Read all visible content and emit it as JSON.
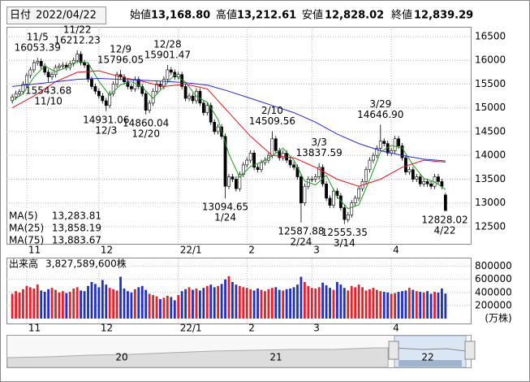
{
  "header": {
    "date_label": "日付",
    "date": "2022/04/22",
    "fields": [
      {
        "name": "始値",
        "value": "13,168.80",
        "color": "#000000"
      },
      {
        "name": "高値",
        "value": "13,212.61",
        "color": "#e0141e"
      },
      {
        "name": "安値",
        "value": "12,828.02",
        "color": "#0a8a1e"
      },
      {
        "name": "終値",
        "value": "12,839.29",
        "color": "#000000"
      }
    ]
  },
  "chart_data": [
    {
      "type": "candlestick",
      "xlim": [
        -1.6,
        127
      ],
      "ylim": [
        12140,
        16705
      ],
      "yticks": [
        12500,
        13000,
        13500,
        14000,
        14500,
        15000,
        15500,
        16000,
        16500
      ],
      "xticks": [
        {
          "value": 4,
          "label": "11"
        },
        {
          "value": 24,
          "label": "12"
        },
        {
          "value": 46,
          "label": "22/1"
        },
        {
          "value": 65,
          "label": "2"
        },
        {
          "value": 83,
          "label": "3"
        },
        {
          "value": 105,
          "label": "4"
        }
      ],
      "grid": true,
      "up_color": "#ffffff",
      "down_color": "#000000",
      "open": [
        15150,
        15230,
        15300,
        15340,
        15500,
        15680,
        15800,
        15950,
        15980,
        15880,
        15750,
        15650,
        15700,
        15850,
        15880,
        15900,
        15850,
        15930,
        16000,
        16130,
        15950,
        15900,
        15600,
        15450,
        15350,
        15250,
        15150,
        15050,
        15300,
        15500,
        15700,
        15650,
        15550,
        15450,
        15400,
        15600,
        15450,
        15300,
        14950,
        15100,
        15350,
        15500,
        15450,
        15600,
        15800,
        15750,
        15650,
        15700,
        15450,
        15200,
        15250,
        15150,
        15350,
        15100,
        14900,
        15050,
        14700,
        14500,
        14600,
        14400,
        13350,
        13550,
        13500,
        13300,
        13600,
        13800,
        13900,
        14050,
        13750,
        13700,
        13850,
        13900,
        14000,
        14350,
        14100,
        13950,
        14050,
        13900,
        13800,
        13750,
        13550,
        13000,
        13350,
        13500,
        13500,
        13550,
        13750,
        13400,
        13100,
        12950,
        13250,
        13150,
        12900,
        12650,
        12750,
        13000,
        13100,
        13300,
        13450,
        13700,
        13900,
        14000,
        14150,
        14300,
        14250,
        14050,
        14100,
        14350,
        14200,
        13950,
        13650,
        13700,
        13500,
        13550,
        13400,
        13450,
        13400,
        13350,
        13550,
        13450,
        13168.8
      ],
      "high": [
        15290,
        15360,
        15400,
        15560,
        15740,
        15860,
        16010,
        16053.39,
        16040,
        15940,
        15810,
        15760,
        15910,
        15940,
        15960,
        15960,
        15990,
        16060,
        16212.23,
        16190,
        16010,
        15960,
        15660,
        15510,
        15410,
        15310,
        15210,
        15360,
        15560,
        15760,
        15796.05,
        15710,
        15610,
        15510,
        15660,
        15660,
        15510,
        15360,
        15160,
        15410,
        15560,
        15560,
        15660,
        15901.47,
        15860,
        15810,
        15760,
        15760,
        15510,
        15310,
        15310,
        15410,
        15410,
        15160,
        15110,
        15110,
        14760,
        14660,
        14660,
        14460,
        13610,
        13610,
        13560,
        13660,
        13860,
        13960,
        14110,
        14110,
        13810,
        13910,
        13960,
        14060,
        14509.56,
        14410,
        14160,
        14110,
        14110,
        13960,
        13860,
        13810,
        13610,
        13410,
        13560,
        13560,
        13610,
        13837.59,
        13810,
        13460,
        13160,
        13310,
        13310,
        13210,
        12960,
        12810,
        13060,
        13160,
        13360,
        13510,
        13760,
        13960,
        14060,
        14210,
        14646.9,
        14360,
        14310,
        14160,
        14410,
        14410,
        14260,
        14010,
        13760,
        13760,
        13610,
        13610,
        13510,
        13510,
        13460,
        13610,
        13610,
        13510,
        13212.61
      ],
      "low": [
        15090,
        15170,
        15240,
        15280,
        15440,
        15620,
        15740,
        15890,
        15820,
        15690,
        15543.68,
        15590,
        15640,
        15790,
        15820,
        15790,
        15790,
        15870,
        15940,
        15890,
        15840,
        15540,
        15390,
        15290,
        15190,
        15090,
        14931.06,
        14990,
        15240,
        15440,
        15590,
        15490,
        15390,
        15340,
        15340,
        15390,
        15240,
        14860.04,
        14890,
        15040,
        15290,
        15390,
        15390,
        15540,
        15690,
        15590,
        15590,
        15390,
        15140,
        15140,
        15090,
        15090,
        15040,
        14840,
        14840,
        14640,
        14440,
        14440,
        14340,
        13094.65,
        13290,
        13440,
        13240,
        13240,
        13540,
        13740,
        13840,
        13690,
        13640,
        13640,
        13790,
        13840,
        13940,
        14040,
        13890,
        13890,
        13840,
        13740,
        13690,
        13490,
        12587.88,
        12940,
        13290,
        13440,
        13440,
        13490,
        13340,
        13040,
        12890,
        12890,
        13090,
        12840,
        12555.35,
        12590,
        12690,
        12940,
        13040,
        13240,
        13390,
        13640,
        13840,
        13940,
        14090,
        14190,
        13990,
        13990,
        14040,
        14140,
        13890,
        13590,
        13590,
        13440,
        13440,
        13340,
        13340,
        13340,
        13290,
        13290,
        13390,
        13290,
        12828.02
      ],
      "close": [
        15230,
        15300,
        15340,
        15500,
        15680,
        15800,
        15950,
        15980,
        15880,
        15750,
        15650,
        15700,
        15850,
        15880,
        15900,
        15850,
        15930,
        16000,
        16130,
        15950,
        15900,
        15600,
        15450,
        15350,
        15250,
        15150,
        15050,
        15300,
        15500,
        15700,
        15650,
        15550,
        15450,
        15400,
        15600,
        15450,
        15300,
        14950,
        15100,
        15350,
        15500,
        15450,
        15600,
        15800,
        15750,
        15650,
        15700,
        15450,
        15200,
        15250,
        15150,
        15350,
        15100,
        14900,
        15050,
        14700,
        14500,
        14600,
        14400,
        13350,
        13550,
        13500,
        13300,
        13600,
        13800,
        13900,
        14050,
        13750,
        13700,
        13850,
        13900,
        14000,
        14350,
        14100,
        13950,
        14050,
        13900,
        13800,
        13750,
        13550,
        13000,
        13350,
        13500,
        13500,
        13550,
        13750,
        13400,
        13100,
        12950,
        13250,
        13150,
        12900,
        12650,
        12750,
        13000,
        13100,
        13300,
        13450,
        13700,
        13900,
        14000,
        14150,
        14300,
        14250,
        14050,
        14100,
        14350,
        14200,
        13950,
        13650,
        13700,
        13500,
        13550,
        13400,
        13450,
        13400,
        13350,
        13550,
        13450,
        13350,
        12839.29
      ],
      "annotations": [
        {
          "date": "11/5",
          "value": 16053.39
        },
        {
          "date": "11/22",
          "value": 16212.23
        },
        {
          "date": "11/10",
          "value": 15543.68
        },
        {
          "date": "12/9",
          "value": 15796.05
        },
        {
          "date": "12/3",
          "value": 14931.06
        },
        {
          "date": "12/20",
          "value": 14860.04
        },
        {
          "date": "12/28",
          "value": 15901.47
        },
        {
          "date": "1/24",
          "value": 13094.65
        },
        {
          "date": "2/10",
          "value": 14509.56
        },
        {
          "date": "2/24",
          "value": 12587.88
        },
        {
          "date": "3/3",
          "value": 13837.59
        },
        {
          "date": "3/14",
          "value": 12555.35
        },
        {
          "date": "3/29",
          "value": {
            "value": 14646.9,
            "label": "14646.90"
          }
        },
        {
          "date": "4/22",
          "value": 12828.02
        }
      ],
      "moving_averages": [
        {
          "name": "MA(5)",
          "color": "#1e9a1e",
          "legend_value": "13,283.81",
          "x": [
            0,
            3,
            6,
            9,
            12,
            15,
            18,
            21,
            24,
            27,
            30,
            33,
            36,
            39,
            42,
            45,
            48,
            51,
            54,
            57,
            60,
            63,
            66,
            69,
            72,
            75,
            78,
            81,
            84,
            87,
            90,
            93,
            96,
            99,
            102,
            105,
            108,
            111,
            114,
            117,
            120
          ],
          "values": [
            15150,
            15300,
            15650,
            15880,
            15760,
            15850,
            15980,
            15950,
            15560,
            15260,
            15490,
            15550,
            15440,
            15200,
            15450,
            15700,
            15540,
            15240,
            15120,
            14760,
            14030,
            13540,
            13770,
            13860,
            13990,
            14150,
            13900,
            13460,
            13380,
            13580,
            13130,
            12880,
            12960,
            13490,
            14070,
            14210,
            14160,
            13800,
            13520,
            13440,
            13283.81
          ]
        },
        {
          "name": "MA(25)",
          "color": "#e0141e",
          "legend_value": "13,858.19",
          "x": [
            0,
            6,
            12,
            18,
            24,
            30,
            36,
            42,
            48,
            54,
            60,
            66,
            72,
            78,
            84,
            90,
            96,
            102,
            108,
            114,
            120
          ],
          "values": [
            15000,
            15250,
            15550,
            15750,
            15780,
            15650,
            15560,
            15450,
            15500,
            15400,
            14900,
            14400,
            14000,
            13950,
            13750,
            13500,
            13350,
            13500,
            13750,
            13900,
            13858.19
          ]
        },
        {
          "name": "MA(75)",
          "color": "#2828d0",
          "legend_value": "13,883.67",
          "x": [
            0,
            6,
            12,
            18,
            24,
            30,
            36,
            42,
            48,
            54,
            60,
            66,
            72,
            78,
            84,
            90,
            96,
            102,
            108,
            114,
            120
          ],
          "values": [
            15450,
            15500,
            15550,
            15600,
            15620,
            15600,
            15580,
            15560,
            15530,
            15480,
            15350,
            15200,
            15050,
            14900,
            14700,
            14450,
            14250,
            14100,
            14000,
            13920,
            13883.67
          ]
        }
      ]
    },
    {
      "type": "bar",
      "title": "出来高",
      "total": "3,827,589,600株",
      "unit": "(万株)",
      "ylim": [
        0,
        920000
      ],
      "yticks": [
        200000,
        400000,
        600000,
        800000
      ],
      "up_color": "#e8202a",
      "down_color": "#2030c0",
      "values": [
        380000,
        420000,
        400000,
        450000,
        500000,
        480000,
        460000,
        520000,
        430000,
        410000,
        450000,
        470000,
        440000,
        400000,
        420000,
        390000,
        410000,
        460000,
        480000,
        430000,
        420000,
        500000,
        560000,
        530000,
        480000,
        590000,
        520000,
        470000,
        450000,
        430000,
        640000,
        460000,
        420000,
        400000,
        450000,
        480000,
        500000,
        440000,
        380000,
        360000,
        340000,
        300000,
        320000,
        350000,
        330000,
        280000,
        360000,
        420000,
        450000,
        480000,
        440000,
        460000,
        430000,
        470000,
        500000,
        520000,
        480000,
        500000,
        530000,
        600000,
        650000,
        560000,
        520000,
        500000,
        480000,
        470000,
        450000,
        430000,
        460000,
        440000,
        420000,
        450000,
        470000,
        480000,
        440000,
        430000,
        450000,
        460000,
        480000,
        520000,
        640000,
        560000,
        500000,
        470000,
        460000,
        480000,
        550000,
        510000,
        470000,
        440000,
        560000,
        520000,
        470000,
        430000,
        500000,
        480000,
        520000,
        480000,
        430000,
        450000,
        470000,
        440000,
        420000,
        410000,
        400000,
        380000,
        390000,
        410000,
        420000,
        430000,
        470000,
        440000,
        420000,
        410000,
        400000,
        420000,
        380000,
        410000,
        400000,
        460000,
        382758.96
      ]
    }
  ],
  "navigator": {
    "labels": [
      "20",
      "21",
      "22"
    ]
  }
}
